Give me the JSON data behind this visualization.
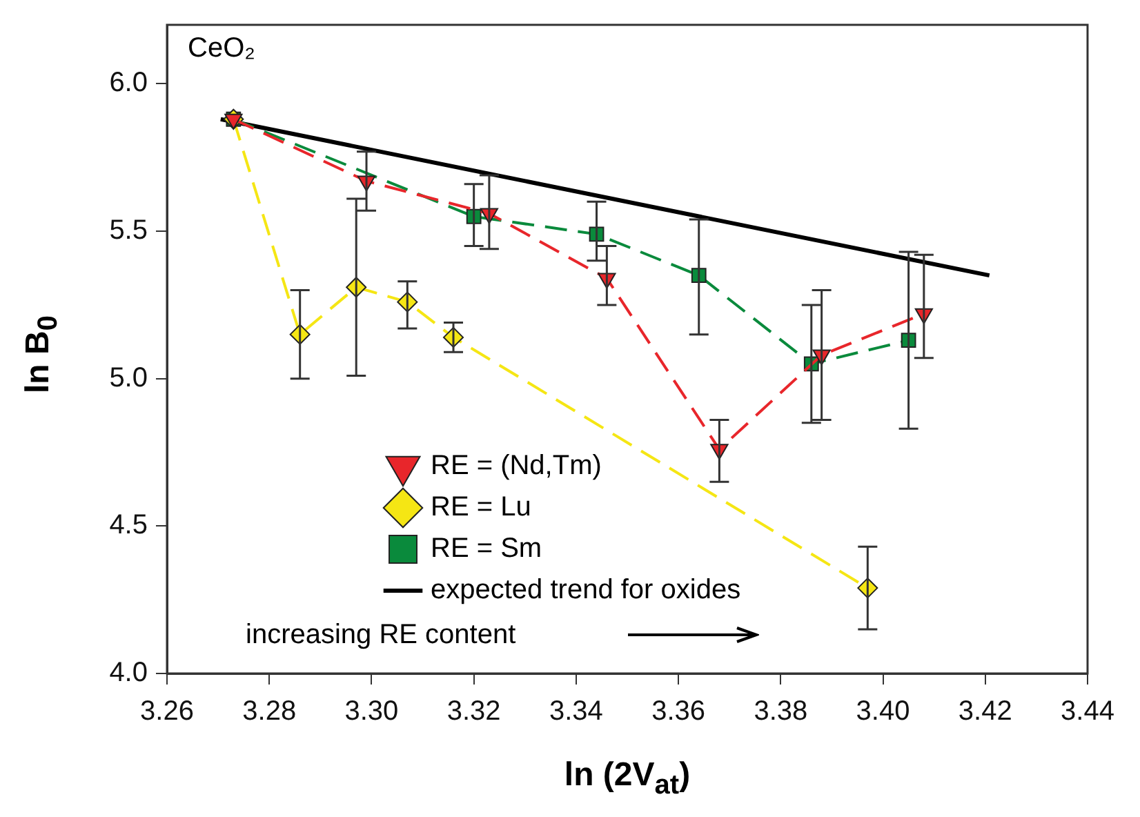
{
  "chart_data": {
    "type": "line",
    "xlabel": "ln (2V$_{at}$)",
    "ylabel": "ln B$_{0}$",
    "xlim": [
      3.26,
      3.44
    ],
    "xticks": [
      3.26,
      3.28,
      {
        "value": 3.3,
        "label": "3.30"
      },
      3.32,
      3.34,
      3.36,
      3.38,
      {
        "value": 3.4,
        "label": "3.40"
      },
      3.42,
      3.44
    ],
    "ylim": [
      4.0,
      6.2
    ],
    "yticks": [
      {
        "value": 4,
        "label": "4.0"
      },
      4.5,
      {
        "value": 5,
        "label": "5.0"
      },
      5.5,
      {
        "value": 6,
        "label": "6.0"
      }
    ],
    "grid": false,
    "legend": "bottom left",
    "line_style": "dashed",
    "annotations": [
      "CeO₂",
      "increasing RE content"
    ],
    "series": [
      {
        "name": "RE = (Nd,Tm)",
        "color": "#e8262b",
        "marker": "triangle",
        "x": [
          3.273,
          3.299,
          3.323,
          3.346,
          3.368,
          3.388,
          3.408
        ],
        "values": [
          5.88,
          5.67,
          5.56,
          5.34,
          4.76,
          5.08,
          5.22
        ],
        "errors": [
          null,
          [
            5.57,
            5.77
          ],
          [
            5.44,
            5.69
          ],
          [
            5.25,
            5.45
          ],
          [
            4.65,
            4.86
          ],
          [
            4.86,
            5.3
          ],
          [
            5.07,
            5.42
          ]
        ]
      },
      {
        "name": "RE = Lu",
        "color": "#f5e614",
        "marker": "diamond",
        "x": [
          3.273,
          3.286,
          3.297,
          3.307,
          3.316,
          3.397
        ],
        "values": [
          5.88,
          5.15,
          5.31,
          5.26,
          5.14,
          4.29
        ],
        "errors": [
          null,
          [
            5.0,
            5.3
          ],
          [
            5.01,
            5.61
          ],
          [
            5.17,
            5.33
          ],
          [
            5.09,
            5.19
          ],
          [
            4.15,
            4.43
          ]
        ]
      },
      {
        "name": "RE = Sm",
        "color": "#0a8a3c",
        "marker": "square",
        "x": [
          3.273,
          3.32,
          3.344,
          3.364,
          3.386,
          3.405
        ],
        "values": [
          5.88,
          5.55,
          5.49,
          5.35,
          5.05,
          5.13
        ],
        "errors": [
          null,
          [
            5.45,
            5.66
          ],
          [
            5.4,
            5.6
          ],
          [
            5.15,
            5.54
          ],
          [
            4.85,
            5.25
          ],
          [
            4.83,
            5.43
          ]
        ]
      },
      {
        "name": "expected trend for oxides",
        "color": "#000000",
        "marker": "none",
        "line_style": "solid",
        "x": [
          3.2705,
          3.4208
        ],
        "values": [
          5.88,
          5.35
        ]
      }
    ]
  }
}
